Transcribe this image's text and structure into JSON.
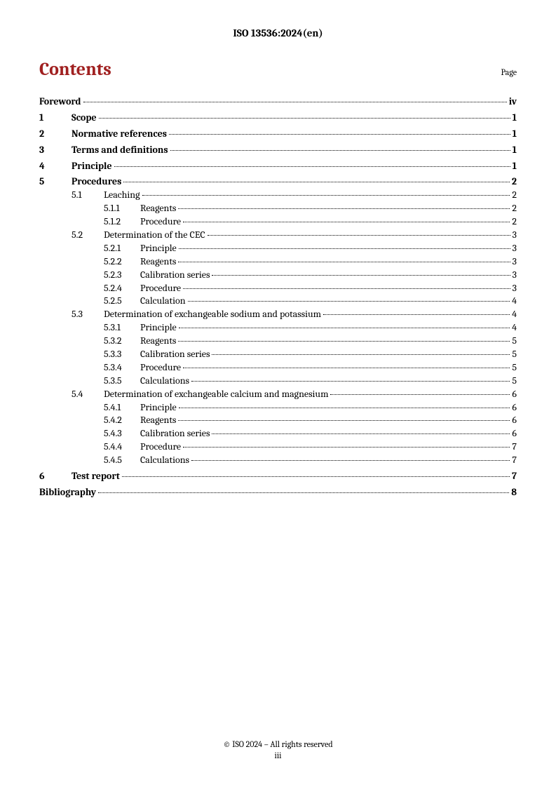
{
  "header": "ISO 13536:2024(en)",
  "contents_title": "Contents",
  "page_label": "Page",
  "footer_line1": "© ISO 2024 – All rights reserved",
  "footer_line2": "iii",
  "toc": [
    {
      "level": 0,
      "bold": true,
      "num": "",
      "title": "Foreword",
      "page": "iv"
    },
    {
      "level": 1,
      "bold": true,
      "num": "1",
      "title": "Scope",
      "page": "1"
    },
    {
      "level": 1,
      "bold": true,
      "num": "2",
      "title": "Normative references",
      "page": "1"
    },
    {
      "level": 1,
      "bold": true,
      "num": "3",
      "title": "Terms and definitions",
      "page": "1"
    },
    {
      "level": 1,
      "bold": true,
      "num": "4",
      "title": "Principle",
      "page": "1"
    },
    {
      "level": 1,
      "bold": true,
      "num": "5",
      "title": "Procedures",
      "page": "2"
    },
    {
      "level": 2,
      "bold": false,
      "num": "5.1",
      "title": "Leaching",
      "page": "2"
    },
    {
      "level": 3,
      "bold": false,
      "num": "5.1.1",
      "title": "Reagents",
      "page": "2"
    },
    {
      "level": 3,
      "bold": false,
      "num": "5.1.2",
      "title": "Procedure",
      "page": "2"
    },
    {
      "level": 2,
      "bold": false,
      "num": "5.2",
      "title": "Determination of the CEC",
      "page": "3"
    },
    {
      "level": 3,
      "bold": false,
      "num": "5.2.1",
      "title": "Principle",
      "page": "3"
    },
    {
      "level": 3,
      "bold": false,
      "num": "5.2.2",
      "title": "Reagents",
      "page": "3"
    },
    {
      "level": 3,
      "bold": false,
      "num": "5.2.3",
      "title": "Calibration series",
      "page": "3"
    },
    {
      "level": 3,
      "bold": false,
      "num": "5.2.4",
      "title": "Procedure",
      "page": "3"
    },
    {
      "level": 3,
      "bold": false,
      "num": "5.2.5",
      "title": "Calculation",
      "page": "4"
    },
    {
      "level": 2,
      "bold": false,
      "num": "5.3",
      "title": "Determination of exchangeable sodium and potassium",
      "page": "4"
    },
    {
      "level": 3,
      "bold": false,
      "num": "5.3.1",
      "title": "Principle",
      "page": "4"
    },
    {
      "level": 3,
      "bold": false,
      "num": "5.3.2",
      "title": "Reagents",
      "page": "5"
    },
    {
      "level": 3,
      "bold": false,
      "num": "5.3.3",
      "title": "Calibration series",
      "page": "5"
    },
    {
      "level": 3,
      "bold": false,
      "num": "5.3.4",
      "title": "Procedure",
      "page": "5"
    },
    {
      "level": 3,
      "bold": false,
      "num": "5.3.5",
      "title": "Calculations",
      "page": "5"
    },
    {
      "level": 2,
      "bold": false,
      "num": "5.4",
      "title": "Determination of exchangeable calcium and magnesium",
      "page": "6"
    },
    {
      "level": 3,
      "bold": false,
      "num": "5.4.1",
      "title": "Principle",
      "page": "6"
    },
    {
      "level": 3,
      "bold": false,
      "num": "5.4.2",
      "title": "Reagents",
      "page": "6"
    },
    {
      "level": 3,
      "bold": false,
      "num": "5.4.3",
      "title": "Calibration series",
      "page": "6"
    },
    {
      "level": 3,
      "bold": false,
      "num": "5.4.4",
      "title": "Procedure",
      "page": "7"
    },
    {
      "level": 3,
      "bold": false,
      "num": "5.4.5",
      "title": "Calculations",
      "page": "7"
    },
    {
      "level": 1,
      "bold": true,
      "num": "6",
      "title": "Test report",
      "page": "7"
    },
    {
      "level": 0,
      "bold": true,
      "num": "",
      "title": "Bibliography",
      "page": "8"
    }
  ]
}
